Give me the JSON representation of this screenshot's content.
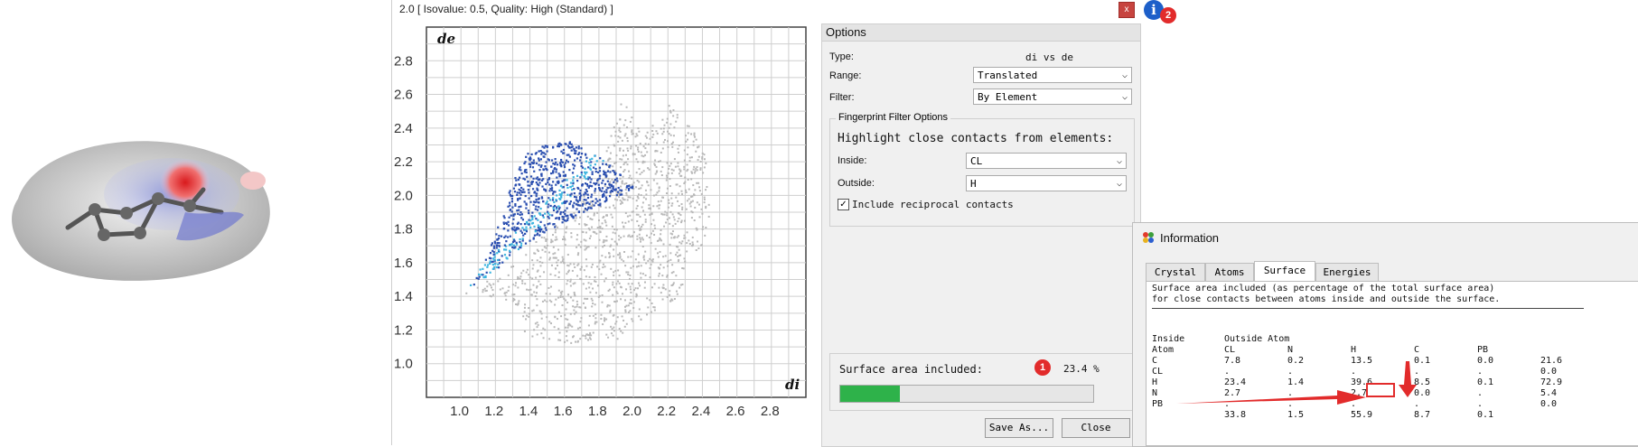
{
  "surface_view": {
    "alt": "Hirshfeld surface with molecule"
  },
  "fingerprint_window": {
    "title": "2.0 [ Isovalue: 0.5, Quality: High (Standard) ]",
    "close_label": "x",
    "info_button_label": "i",
    "badge_info": "2"
  },
  "plot": {
    "x_label": "di",
    "y_label": "de",
    "x_ticks": [
      "1.0",
      "1.2",
      "1.4",
      "1.6",
      "1.8",
      "2.0",
      "2.2",
      "2.4",
      "2.6",
      "2.8"
    ],
    "y_ticks": [
      "2.8",
      "2.6",
      "2.4",
      "2.2",
      "2.0",
      "1.8",
      "1.6",
      "1.4",
      "1.2",
      "1.0"
    ]
  },
  "options": {
    "header": "Options",
    "type_label": "Type:",
    "type_value": "di vs de",
    "range_label": "Range:",
    "range_value": "Translated",
    "filter_label": "Filter:",
    "filter_value": "By Element",
    "group_title": "Fingerprint Filter Options",
    "highlight_text": "Highlight close contacts from elements:",
    "inside_label": "Inside:",
    "inside_value": "CL",
    "outside_label": "Outside:",
    "outside_value": "H",
    "reciprocal_label": "Include reciprocal contacts",
    "reciprocal_checked": "✓",
    "surface_area_label": "Surface area included:",
    "surface_area_value": "23.4 %",
    "surface_area_fraction": 0.234,
    "badge_sa": "1",
    "save_label": "Save As...",
    "close_label": "Close"
  },
  "info": {
    "title": "Information",
    "tabs": [
      "Crystal",
      "Atoms",
      "Surface",
      "Energies"
    ],
    "active_tab": "Surface",
    "desc_line1": "Surface area included (as percentage of the total surface area)",
    "desc_line2": "for close contacts between atoms inside and outside the surface.",
    "header_inside": "Inside",
    "header_outside": "Outside Atom",
    "header_atom": "Atom",
    "columns": [
      "CL",
      "N",
      "H",
      "C",
      "PB"
    ],
    "rows": [
      {
        "atom": "C",
        "values": [
          "7.8",
          "0.2",
          "13.5",
          "0.1",
          "0.0"
        ],
        "total": "21.6"
      },
      {
        "atom": "CL",
        "values": [
          ".",
          ".",
          ".",
          ".",
          "."
        ],
        "total": "0.0"
      },
      {
        "atom": "H",
        "values": [
          "23.4",
          "1.4",
          "39.6",
          "8.5",
          "0.1"
        ],
        "total": "72.9"
      },
      {
        "atom": "N",
        "values": [
          "2.7",
          ".",
          "2.7",
          "0.0",
          "."
        ],
        "total": "5.4"
      },
      {
        "atom": "PB",
        "values": [
          ".",
          ".",
          ".",
          ".",
          "."
        ],
        "total": "0.0"
      }
    ],
    "totals": [
      "33.8",
      "1.5",
      "55.9",
      "8.7",
      "0.1"
    ]
  },
  "colors": {
    "accent_blue": "#2b4fb0",
    "highlight_cyan": "#3fb6e0",
    "gray_points": "#b8b8b8",
    "annotation_red": "#e22b2b",
    "progress_green": "#2eb24a"
  }
}
